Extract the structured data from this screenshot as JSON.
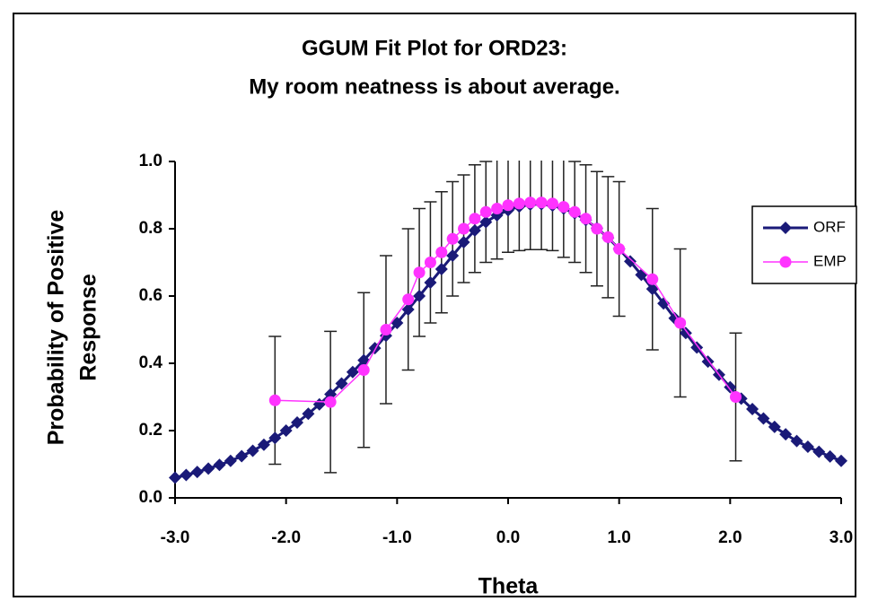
{
  "chart_data": {
    "type": "line",
    "title": [
      "GGUM Fit Plot for ORD23:",
      "My room neatness is about average."
    ],
    "ylabel": [
      "Probability of Positive",
      "Response"
    ],
    "xlabel": "Theta",
    "xlim": [
      -3,
      3
    ],
    "xticks": [
      {
        "value": -3,
        "label": "-3.0"
      },
      {
        "value": -2,
        "label": "-2.0"
      },
      {
        "value": -1,
        "label": "-1.0"
      },
      {
        "value": 0,
        "label": "0.0"
      },
      {
        "value": 1,
        "label": "1.0"
      },
      {
        "value": 2,
        "label": "2.0"
      },
      {
        "value": 3,
        "label": "3.0"
      }
    ],
    "ylim": [
      0,
      1
    ],
    "yticks": [
      {
        "value": 0,
        "label": "0.0"
      },
      0.2,
      0.4,
      0.6,
      0.8,
      {
        "value": 1,
        "label": "1.0"
      }
    ],
    "legend": "right",
    "series": [
      {
        "name": "ORF",
        "color": "#1a1a78",
        "marker": "diamond",
        "x": [
          -3.0,
          -2.9,
          -2.8,
          -2.7,
          -2.6,
          -2.5,
          -2.4,
          -2.3,
          -2.2,
          -2.1,
          -2.0,
          -1.9,
          -1.8,
          -1.7,
          -1.6,
          -1.5,
          -1.4,
          -1.3,
          -1.2,
          -1.1,
          -1.0,
          -0.9,
          -0.8,
          -0.7,
          -0.6,
          -0.5,
          -0.4,
          -0.3,
          -0.2,
          -0.1,
          0.0,
          0.1,
          0.2,
          0.3,
          0.4,
          0.5,
          0.6,
          0.7,
          0.8,
          0.9,
          1.0,
          1.1,
          1.2,
          1.3,
          1.4,
          1.5,
          1.6,
          1.7,
          1.8,
          1.9,
          2.0,
          2.1,
          2.2,
          2.3,
          2.4,
          2.5,
          2.6,
          2.7,
          2.8,
          2.9,
          3.0
        ],
        "values": [
          0.06,
          0.068,
          0.077,
          0.087,
          0.098,
          0.11,
          0.124,
          0.14,
          0.158,
          0.178,
          0.2,
          0.224,
          0.25,
          0.278,
          0.308,
          0.34,
          0.374,
          0.409,
          0.445,
          0.482,
          0.52,
          0.56,
          0.6,
          0.64,
          0.68,
          0.72,
          0.76,
          0.795,
          0.82,
          0.84,
          0.855,
          0.866,
          0.872,
          0.873,
          0.869,
          0.86,
          0.846,
          0.826,
          0.802,
          0.773,
          0.74,
          0.703,
          0.663,
          0.621,
          0.578,
          0.534,
          0.49,
          0.447,
          0.405,
          0.366,
          0.329,
          0.295,
          0.264,
          0.236,
          0.211,
          0.189,
          0.169,
          0.152,
          0.137,
          0.123,
          0.11
        ]
      },
      {
        "name": "EMP",
        "color": "#ff33ff",
        "marker": "circle",
        "x": [
          -2.1,
          -1.6,
          -1.3,
          -1.1,
          -0.9,
          -0.8,
          -0.7,
          -0.6,
          -0.5,
          -0.4,
          -0.3,
          -0.2,
          -0.1,
          0.0,
          0.1,
          0.2,
          0.3,
          0.4,
          0.5,
          0.6,
          0.7,
          0.8,
          0.9,
          1.0,
          1.3,
          1.55,
          2.05
        ],
        "values": [
          0.29,
          0.285,
          0.38,
          0.5,
          0.59,
          0.67,
          0.7,
          0.73,
          0.77,
          0.8,
          0.83,
          0.85,
          0.86,
          0.87,
          0.875,
          0.878,
          0.878,
          0.875,
          0.865,
          0.85,
          0.83,
          0.8,
          0.775,
          0.74,
          0.65,
          0.52,
          0.3
        ],
        "errors": [
          0.19,
          0.21,
          0.23,
          0.22,
          0.21,
          0.19,
          0.18,
          0.18,
          0.17,
          0.16,
          0.16,
          0.15,
          0.15,
          0.14,
          0.14,
          0.14,
          0.14,
          0.14,
          0.15,
          0.15,
          0.16,
          0.17,
          0.18,
          0.2,
          0.21,
          0.22,
          0.19
        ]
      }
    ]
  }
}
